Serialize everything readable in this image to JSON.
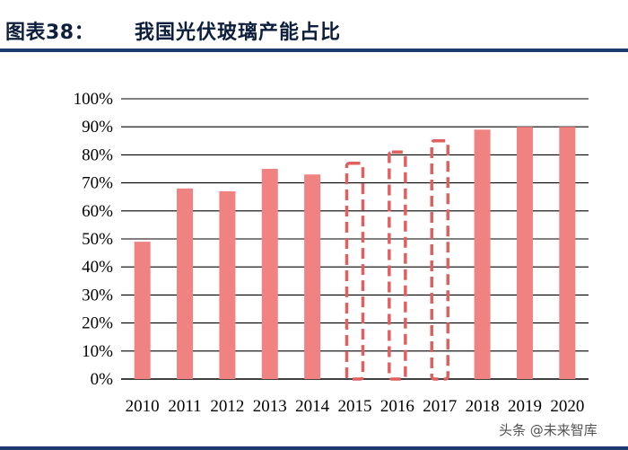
{
  "header": {
    "figure_label": "图表38：",
    "title": "我国光伏玻璃产能占比"
  },
  "watermark": "头条 @未来智库",
  "colors": {
    "bar": "#f08282",
    "dashed_outline": "#e06060",
    "grid": "#000000",
    "rule": "#1e3a6e"
  },
  "chart_data": {
    "type": "bar",
    "title": "",
    "xlabel": "",
    "ylabel": "",
    "categories": [
      "2010",
      "2011",
      "2012",
      "2013",
      "2014",
      "2015",
      "2016",
      "2017",
      "2018",
      "2019",
      "2020"
    ],
    "values": [
      49,
      68,
      67,
      75,
      73,
      77,
      81,
      85,
      89,
      90,
      90
    ],
    "dashed": [
      false,
      false,
      false,
      false,
      false,
      true,
      true,
      true,
      false,
      false,
      false
    ],
    "ylim": [
      0,
      100
    ],
    "yticks": [
      "0%",
      "10%",
      "20%",
      "30%",
      "40%",
      "50%",
      "60%",
      "70%",
      "80%",
      "90%",
      "100%"
    ],
    "grid": true
  }
}
